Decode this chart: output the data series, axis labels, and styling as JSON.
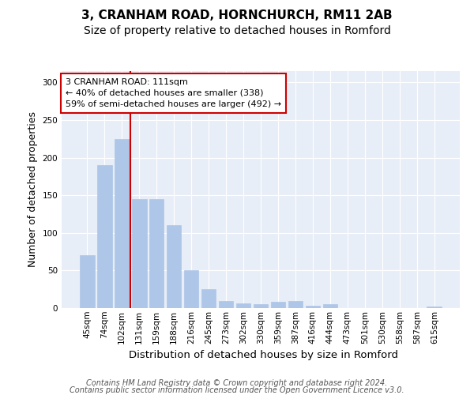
{
  "title_line1": "3, CRANHAM ROAD, HORNCHURCH, RM11 2AB",
  "title_line2": "Size of property relative to detached houses in Romford",
  "xlabel": "Distribution of detached houses by size in Romford",
  "ylabel": "Number of detached properties",
  "categories": [
    "45sqm",
    "74sqm",
    "102sqm",
    "131sqm",
    "159sqm",
    "188sqm",
    "216sqm",
    "245sqm",
    "273sqm",
    "302sqm",
    "330sqm",
    "359sqm",
    "387sqm",
    "416sqm",
    "444sqm",
    "473sqm",
    "501sqm",
    "530sqm",
    "558sqm",
    "587sqm",
    "615sqm"
  ],
  "values": [
    70,
    190,
    225,
    145,
    145,
    110,
    50,
    25,
    9,
    6,
    5,
    8,
    9,
    3,
    5,
    0,
    0,
    0,
    0,
    0,
    2
  ],
  "bar_color": "#aec6e8",
  "bar_edgecolor": "#aec6e8",
  "vline_x": 2.5,
  "vline_color": "#cc0000",
  "annotation_text": "3 CRANHAM ROAD: 111sqm\n← 40% of detached houses are smaller (338)\n59% of semi-detached houses are larger (492) →",
  "annotation_box_edgecolor": "#cc0000",
  "annotation_box_facecolor": "#ffffff",
  "ylim": [
    0,
    315
  ],
  "yticks": [
    0,
    50,
    100,
    150,
    200,
    250,
    300
  ],
  "background_color": "#e8eef7",
  "footer_line1": "Contains HM Land Registry data © Crown copyright and database right 2024.",
  "footer_line2": "Contains public sector information licensed under the Open Government Licence v3.0.",
  "title_fontsize": 11,
  "subtitle_fontsize": 10,
  "xlabel_fontsize": 9.5,
  "ylabel_fontsize": 9,
  "tick_fontsize": 7.5,
  "footer_fontsize": 7
}
